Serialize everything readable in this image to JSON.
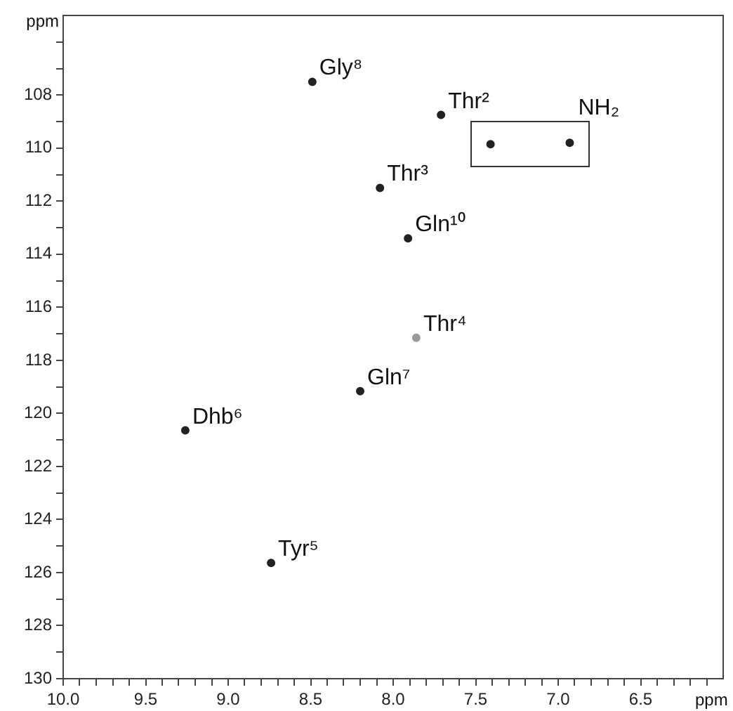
{
  "chart_data": {
    "type": "scatter",
    "xlabel": "ppm",
    "ylabel": "ppm",
    "marker": "circle",
    "grid": false,
    "legend": false,
    "xlim": [
      10.0,
      6.0
    ],
    "ylim": [
      130,
      105
    ],
    "xticks": [
      {
        "value": 10.0,
        "label": "10.0"
      },
      {
        "value": 9.9,
        "label": null
      },
      {
        "value": 9.8,
        "label": null
      },
      {
        "value": 9.7,
        "label": null
      },
      {
        "value": 9.6,
        "label": null
      },
      {
        "value": 9.5,
        "label": "9.5"
      },
      {
        "value": 9.4,
        "label": null
      },
      {
        "value": 9.3,
        "label": null
      },
      {
        "value": 9.2,
        "label": null
      },
      {
        "value": 9.1,
        "label": null
      },
      {
        "value": 9.0,
        "label": "9.0"
      },
      {
        "value": 8.9,
        "label": null
      },
      {
        "value": 8.8,
        "label": null
      },
      {
        "value": 8.7,
        "label": null
      },
      {
        "value": 8.6,
        "label": null
      },
      {
        "value": 8.5,
        "label": "8.5"
      },
      {
        "value": 8.4,
        "label": null
      },
      {
        "value": 8.3,
        "label": null
      },
      {
        "value": 8.2,
        "label": null
      },
      {
        "value": 8.1,
        "label": null
      },
      {
        "value": 8.0,
        "label": "8.0"
      },
      {
        "value": 7.9,
        "label": null
      },
      {
        "value": 7.8,
        "label": null
      },
      {
        "value": 7.7,
        "label": null
      },
      {
        "value": 7.6,
        "label": null
      },
      {
        "value": 7.5,
        "label": "7.5"
      },
      {
        "value": 7.4,
        "label": null
      },
      {
        "value": 7.3,
        "label": null
      },
      {
        "value": 7.2,
        "label": null
      },
      {
        "value": 7.1,
        "label": null
      },
      {
        "value": 7.0,
        "label": "7.0"
      },
      {
        "value": 6.9,
        "label": null
      },
      {
        "value": 6.8,
        "label": null
      },
      {
        "value": 6.7,
        "label": null
      },
      {
        "value": 6.6,
        "label": null
      },
      {
        "value": 6.5,
        "label": "6.5"
      },
      {
        "value": 6.4,
        "label": null
      },
      {
        "value": 6.3,
        "label": null
      },
      {
        "value": 6.2,
        "label": null
      },
      {
        "value": 6.1,
        "label": null
      }
    ],
    "yticks": [
      {
        "value": 106,
        "label": null
      },
      {
        "value": 107,
        "label": null
      },
      108,
      {
        "value": 109,
        "label": null
      },
      110,
      {
        "value": 111,
        "label": null
      },
      112,
      {
        "value": 113,
        "label": null
      },
      114,
      {
        "value": 115,
        "label": null
      },
      116,
      {
        "value": 117,
        "label": null
      },
      118,
      {
        "value": 119,
        "label": null
      },
      120,
      {
        "value": 121,
        "label": null
      },
      122,
      {
        "value": 123,
        "label": null
      },
      124,
      {
        "value": 125,
        "label": null
      },
      126,
      {
        "value": 127,
        "label": null
      },
      128,
      {
        "value": 129,
        "label": null
      },
      130
    ],
    "series": [
      {
        "x": [
          8.49,
          7.71,
          8.08,
          7.91,
          7.86,
          9.26,
          8.2,
          8.74
        ],
        "values": [
          107.5,
          108.75,
          111.5,
          113.4,
          117.15,
          120.64,
          119.16,
          125.64
        ],
        "colors": [
          "#222222",
          "#222222",
          "#222222",
          "#222222",
          "#999999",
          "#222222",
          "#222222",
          "#222222"
        ]
      },
      {
        "x": [
          7.41,
          6.93
        ],
        "values": [
          109.85,
          109.8
        ],
        "color": "#222222"
      }
    ],
    "annotations": [
      {
        "text": "Gly⁸",
        "x": 8.49,
        "y": 107.5
      },
      {
        "text": "Thr²",
        "x": 7.71,
        "y": 108.75
      },
      "NH₂",
      {
        "text": "Thr³",
        "x": 8.08,
        "y": 111.5
      },
      {
        "text": "Gln¹⁰",
        "x": 7.91,
        "y": 113.4
      },
      {
        "text": "Thr⁴",
        "x": 7.86,
        "y": 117.15
      },
      {
        "text": "Dhb⁶",
        "x": 9.26,
        "y": 120.64
      },
      {
        "text": "Gln⁷",
        "x": 8.2,
        "y": 119.16
      },
      {
        "text": "Tyr⁵",
        "x": 8.74,
        "y": 125.64
      }
    ]
  }
}
